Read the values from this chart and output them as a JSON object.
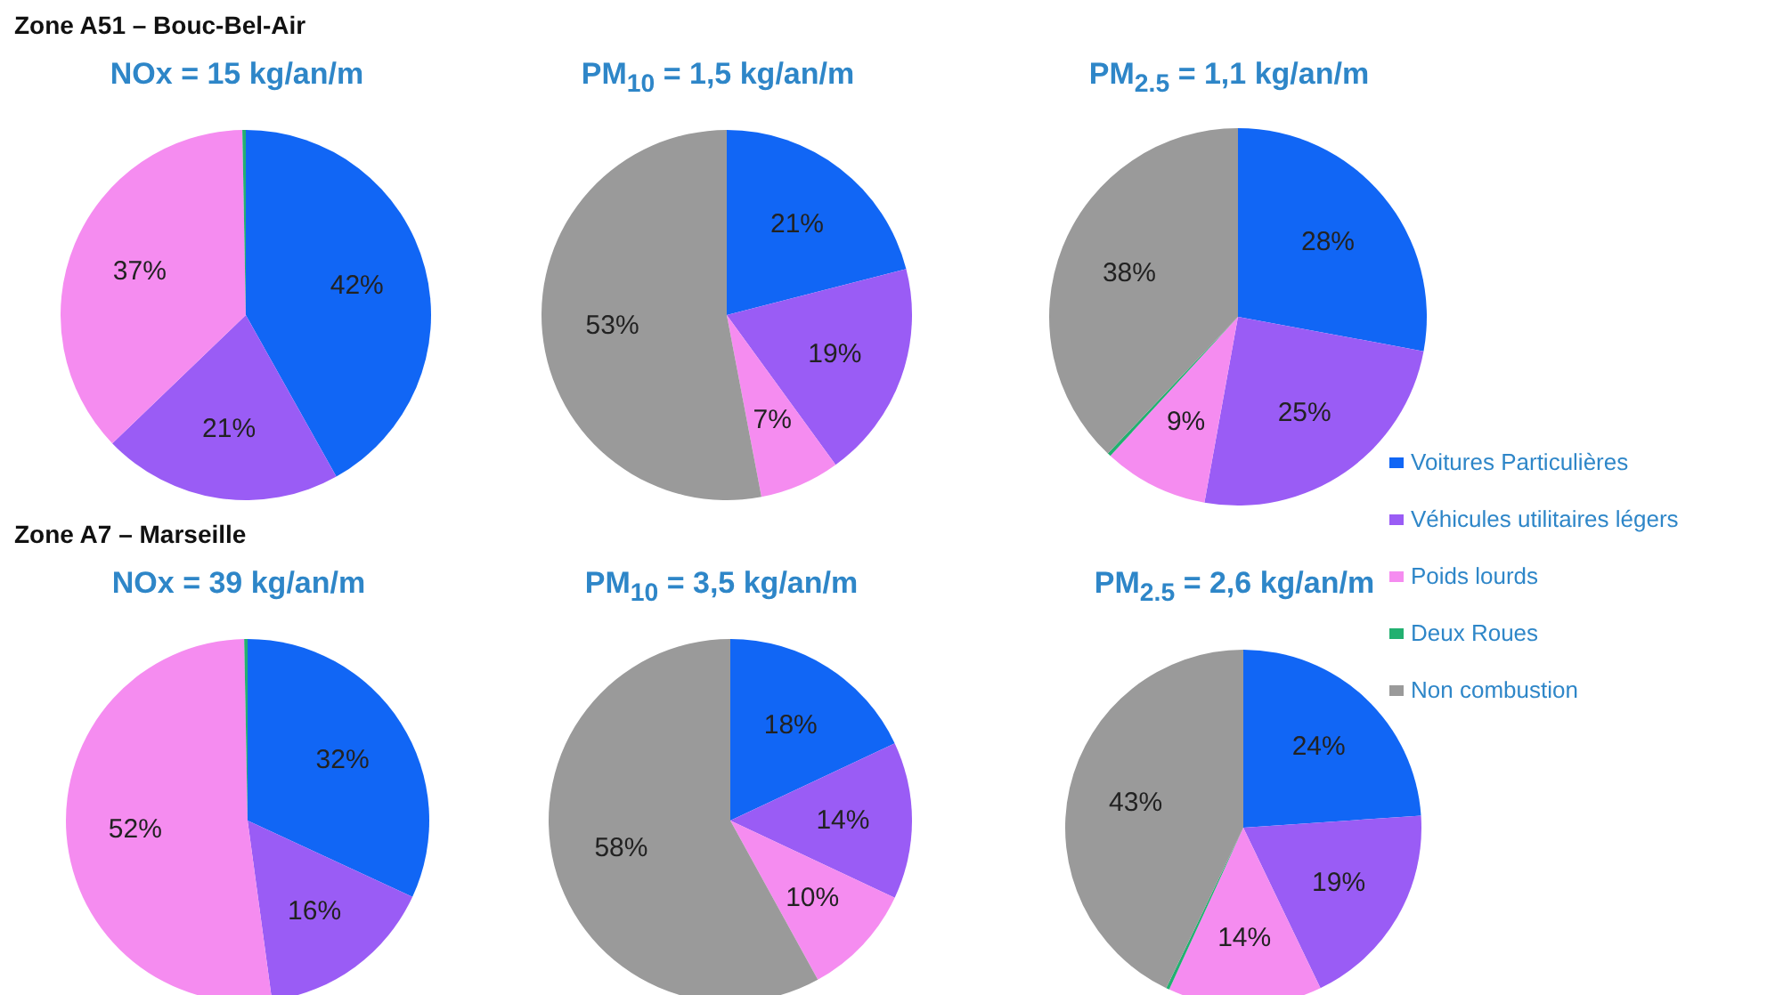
{
  "chart_data": [
    {
      "type": "pie",
      "title": "NOx = 15 kg/an/m",
      "annotations": [
        "Zone A51 – Bouc-Bel-Air"
      ],
      "categories": [
        null,
        null,
        null,
        null,
        null
      ],
      "values": [
        42,
        21,
        37,
        0.3,
        0
      ],
      "value_labels": [
        "42%",
        "21%",
        "37%",
        null,
        null
      ],
      "colors": [
        "#1166f5",
        "#9a5cf5",
        "#f58cf0",
        "#22b070",
        "#9a9a9a"
      ],
      "legend": false
    },
    {
      "type": "pie",
      "title": "PM$_{10}$ = 1,5 kg/an/m",
      "categories": [
        null,
        null,
        null,
        null,
        null
      ],
      "values": [
        21,
        19,
        7,
        0,
        53
      ],
      "value_labels": [
        "21%",
        "19%",
        "7%",
        null,
        "53%"
      ],
      "colors": [
        "#1166f5",
        "#9a5cf5",
        "#f58cf0",
        "#22b070",
        "#9a9a9a"
      ],
      "legend": false
    },
    {
      "type": "pie",
      "title": "PM$_{2.5}$ = 1,1 kg/an/m",
      "categories": [
        "Voitures Particulières",
        "Véhicules utilitaires légers",
        "Poids lourds",
        "Deux Roues",
        "Non combustion"
      ],
      "values": [
        28,
        25,
        9,
        0.3,
        38
      ],
      "value_labels": [
        "28%",
        "25%",
        "9%",
        null,
        "38%"
      ],
      "colors": [
        "#1166f5",
        "#9a5cf5",
        "#f58cf0",
        "#22b070",
        "#9a9a9a"
      ],
      "legend": "bottom right"
    },
    {
      "type": "pie",
      "title": "NOx = 39 kg/an/m",
      "annotations": [
        "Zone A7 – Marseille"
      ],
      "categories": [
        null,
        null,
        null,
        null,
        null
      ],
      "values": [
        32,
        16,
        52,
        0.3,
        0
      ],
      "value_labels": [
        "32%",
        "16%",
        "52%",
        null,
        null
      ],
      "colors": [
        "#1166f5",
        "#9a5cf5",
        "#f58cf0",
        "#22b070",
        "#9a9a9a"
      ],
      "legend": false
    },
    {
      "type": "pie",
      "title": "PM$_{10}$ = 3,5 kg/an/m",
      "categories": [
        null,
        null,
        null,
        null,
        null
      ],
      "values": [
        18,
        14,
        10,
        0,
        58
      ],
      "value_labels": [
        "18%",
        "14%",
        "10%",
        null,
        "58%"
      ],
      "colors": [
        "#1166f5",
        "#9a5cf5",
        "#f58cf0",
        "#22b070",
        "#9a9a9a"
      ],
      "legend": false
    },
    {
      "type": "pie",
      "title": "PM$_{2.5}$ = 2,6 kg/an/m",
      "categories": [
        null,
        null,
        null,
        null,
        null
      ],
      "values": [
        24,
        19,
        14,
        0.3,
        43
      ],
      "value_labels": [
        "24%",
        "19%",
        "14%",
        null,
        "43%"
      ],
      "colors": [
        "#1166f5",
        "#9a5cf5",
        "#f58cf0",
        "#22b070",
        "#9a9a9a"
      ],
      "legend": false
    }
  ]
}
